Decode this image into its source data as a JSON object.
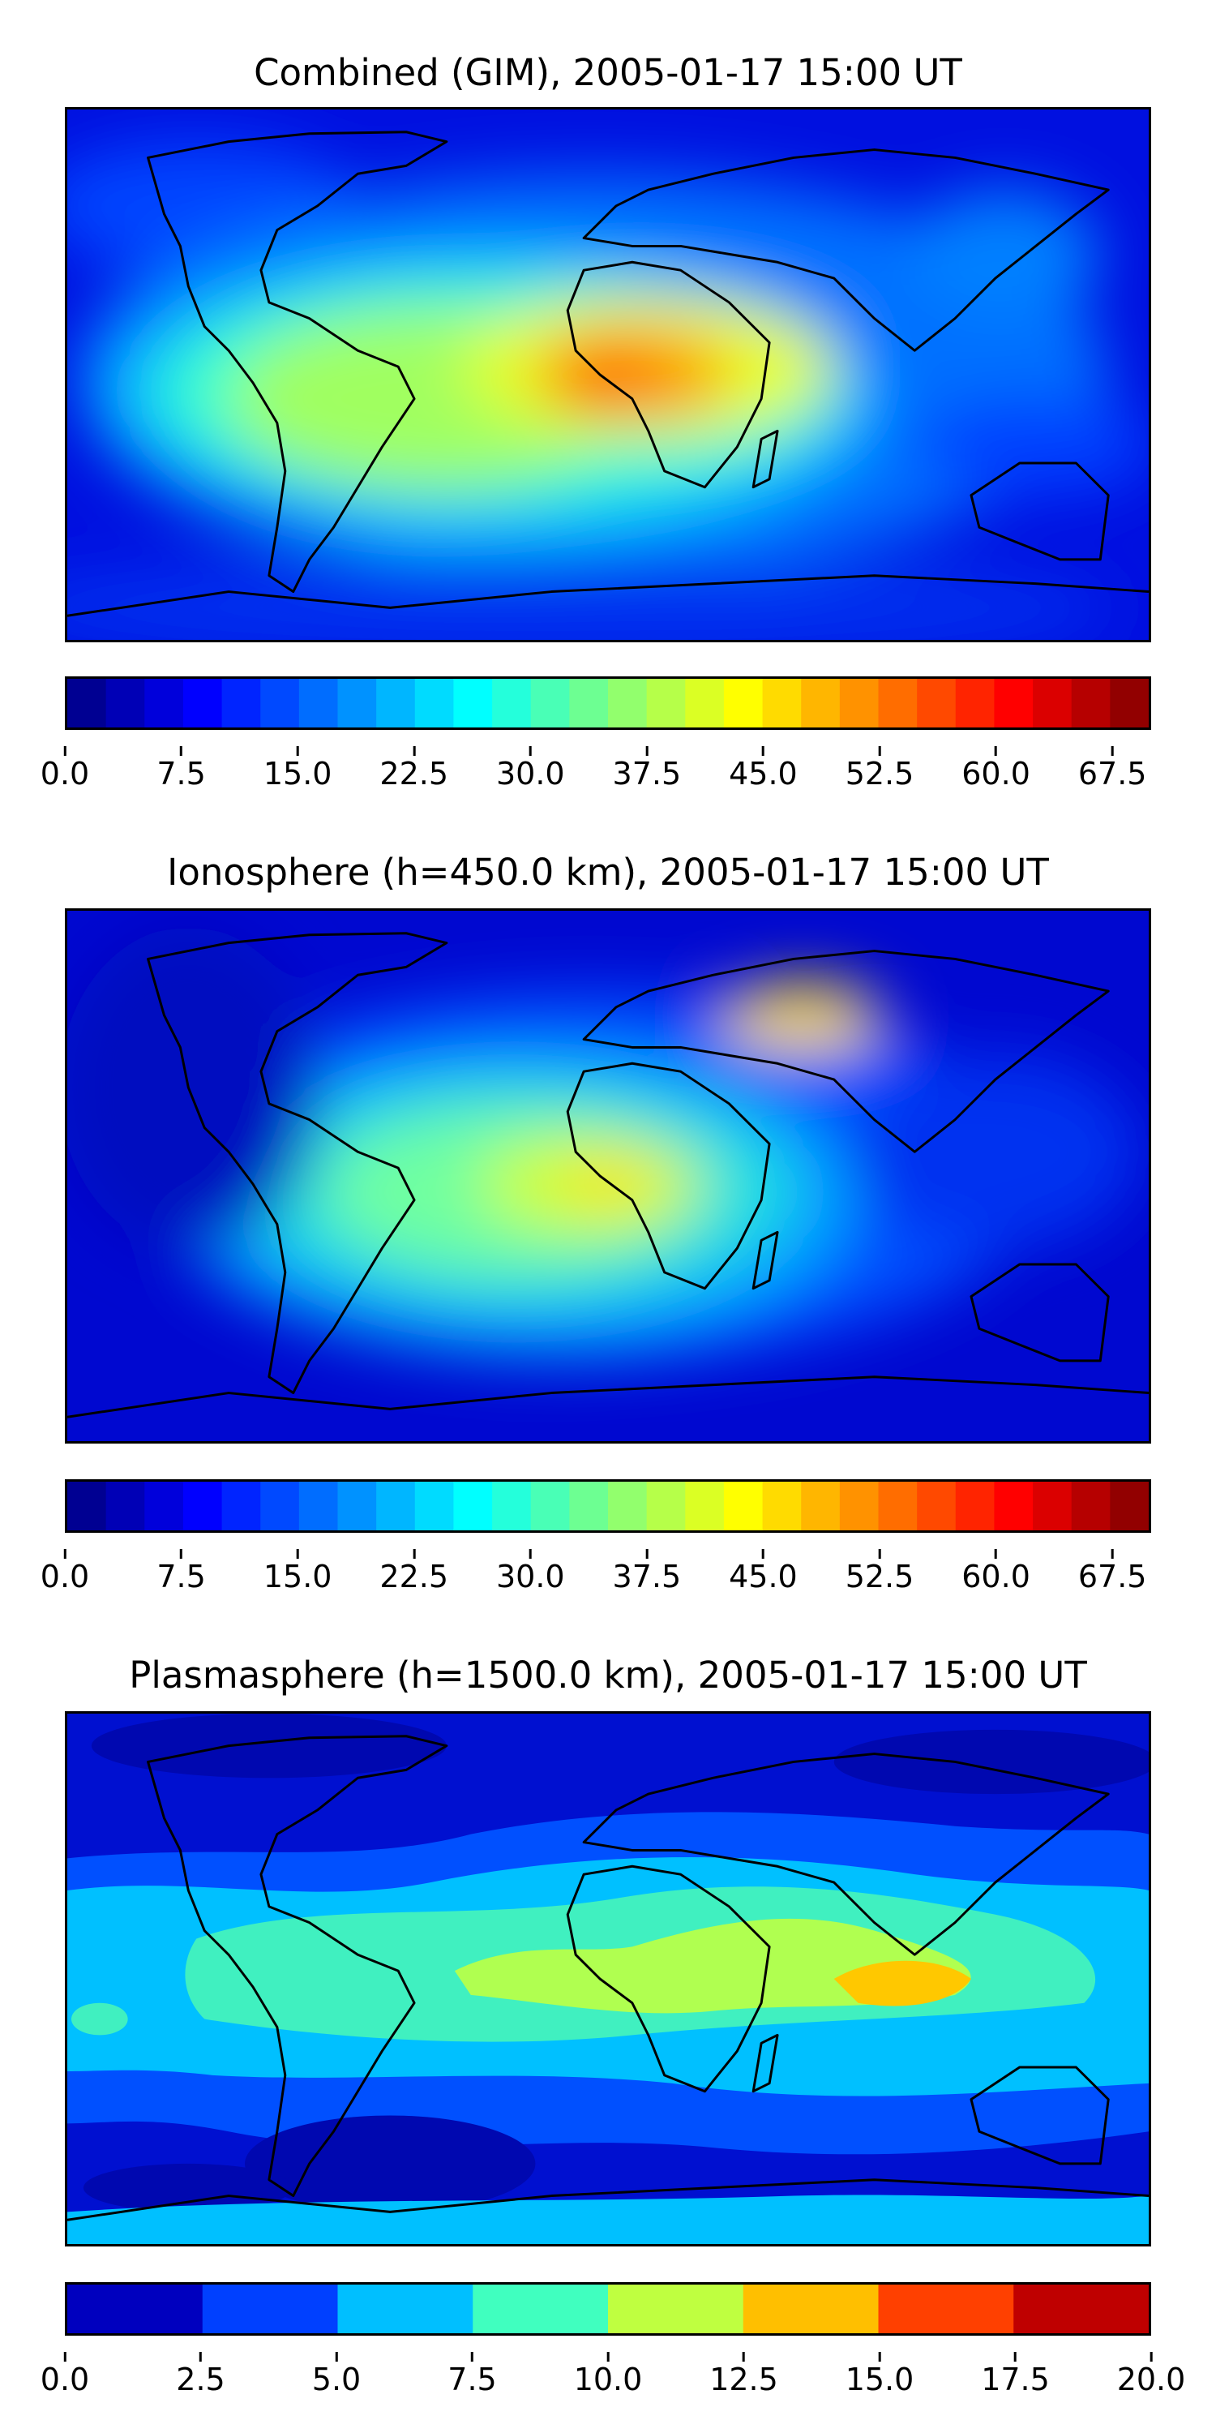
{
  "panels": [
    {
      "id": "combined",
      "title": "Combined (GIM), 2005-01-17 15:00 UT",
      "colorbar": {
        "min": 0.0,
        "max": 70.0,
        "levels": 28,
        "ticks": [
          "0.0",
          "7.5",
          "15.0",
          "22.5",
          "30.0",
          "37.5",
          "45.0",
          "52.5",
          "60.0",
          "67.5"
        ],
        "tick_values": [
          0.0,
          7.5,
          15.0,
          22.5,
          30.0,
          37.5,
          45.0,
          52.5,
          60.0,
          67.5
        ]
      }
    },
    {
      "id": "ionosphere",
      "title": "Ionosphere  (h=450.0 km), 2005-01-17 15:00 UT",
      "colorbar": {
        "min": 0.0,
        "max": 70.0,
        "levels": 28,
        "ticks": [
          "0.0",
          "7.5",
          "15.0",
          "22.5",
          "30.0",
          "37.5",
          "45.0",
          "52.5",
          "60.0",
          "67.5"
        ],
        "tick_values": [
          0.0,
          7.5,
          15.0,
          22.5,
          30.0,
          37.5,
          45.0,
          52.5,
          60.0,
          67.5
        ]
      }
    },
    {
      "id": "plasmasphere",
      "title": "Plasmasphere (h=1500.0 km), 2005-01-17 15:00 UT",
      "colorbar": {
        "min": 0.0,
        "max": 20.0,
        "levels": 8,
        "ticks": [
          "0.0",
          "2.5",
          "5.0",
          "7.5",
          "10.0",
          "12.5",
          "15.0",
          "17.5",
          "20.0"
        ],
        "tick_values": [
          0.0,
          2.5,
          5.0,
          7.5,
          10.0,
          12.5,
          15.0,
          17.5,
          20.0
        ]
      }
    }
  ],
  "colormap": "jet",
  "background_color": "#0000d8",
  "coastline_color": "#000000"
}
